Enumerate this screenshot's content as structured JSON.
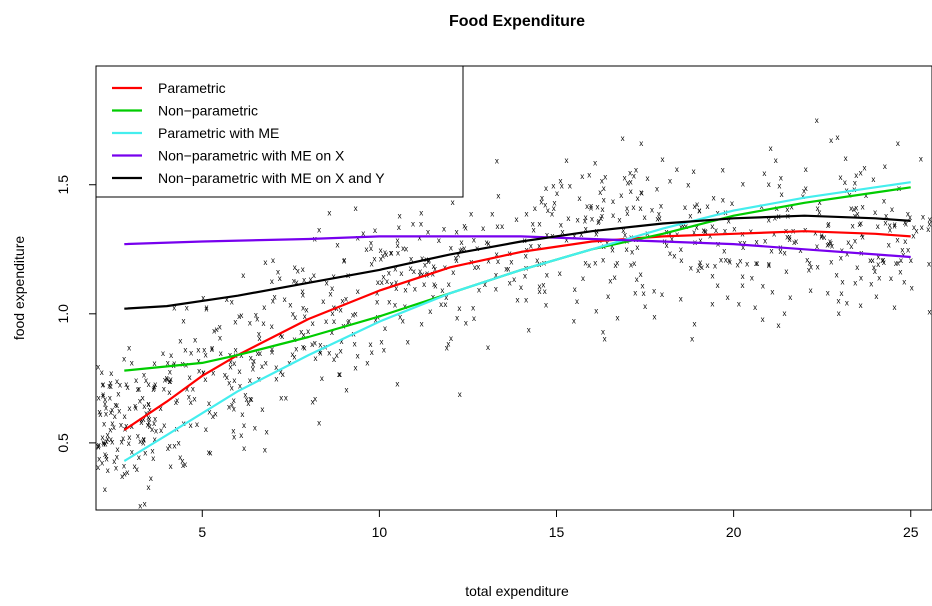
{
  "chart_data": {
    "type": "line",
    "title": "Food Expenditure",
    "xlabel": "total expenditure",
    "ylabel": "food expenditure",
    "xlim": [
      2,
      25.6
    ],
    "ylim": [
      0.24,
      1.96
    ],
    "xticks": [
      5,
      10,
      15,
      20,
      25
    ],
    "yticks": [
      0.5,
      1.0,
      1.5
    ],
    "ytick_labels": [
      "0.5",
      "1.0",
      "1.5"
    ],
    "legend_position": "top-left",
    "scatter_marker": "x",
    "scatter_note": "observed data shown as small x marks, approx. 900 points (x 2–25.6, y 0.25–1.95)",
    "series": [
      {
        "name": "Parametric",
        "color": "#ff0000",
        "x": [
          2.8,
          4,
          5,
          6,
          8,
          10,
          12,
          14,
          16,
          18,
          20,
          22,
          24,
          25
        ],
        "y": [
          0.55,
          0.66,
          0.76,
          0.84,
          0.98,
          1.09,
          1.18,
          1.24,
          1.28,
          1.3,
          1.31,
          1.32,
          1.31,
          1.3
        ]
      },
      {
        "name": "Non−parametric",
        "color": "#00cc00",
        "x": [
          2.8,
          5,
          6,
          8,
          10,
          12,
          14,
          16,
          18,
          20,
          22,
          24,
          25
        ],
        "y": [
          0.78,
          0.81,
          0.84,
          0.91,
          0.99,
          1.08,
          1.17,
          1.25,
          1.31,
          1.38,
          1.43,
          1.47,
          1.49
        ]
      },
      {
        "name": "Parametric with ME",
        "color": "#44eeee",
        "x": [
          2.8,
          4,
          6,
          8,
          10,
          12,
          14,
          16,
          18,
          20,
          22,
          24,
          25
        ],
        "y": [
          0.43,
          0.53,
          0.7,
          0.84,
          0.97,
          1.08,
          1.17,
          1.25,
          1.33,
          1.4,
          1.45,
          1.49,
          1.51
        ]
      },
      {
        "name": "Non−parametric with ME on X",
        "color": "#7700ee",
        "x": [
          2.8,
          5,
          8,
          10,
          12,
          14,
          16,
          18,
          20,
          22,
          24,
          25
        ],
        "y": [
          1.27,
          1.28,
          1.29,
          1.3,
          1.3,
          1.3,
          1.29,
          1.28,
          1.27,
          1.25,
          1.23,
          1.22
        ]
      },
      {
        "name": "Non−parametric with ME on X and Y",
        "color": "#000000",
        "x": [
          2.8,
          4,
          6,
          8,
          10,
          12,
          14,
          16,
          18,
          20,
          22,
          24,
          25
        ],
        "y": [
          1.02,
          1.03,
          1.07,
          1.12,
          1.17,
          1.23,
          1.28,
          1.32,
          1.35,
          1.37,
          1.38,
          1.37,
          1.36
        ]
      }
    ]
  }
}
